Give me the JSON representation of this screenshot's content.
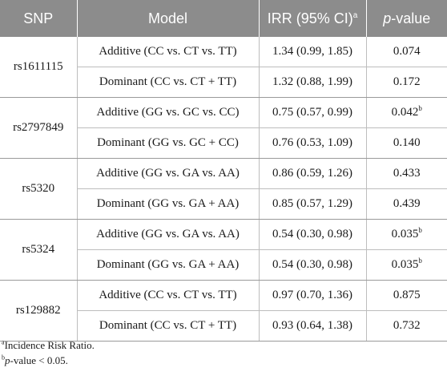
{
  "header": {
    "snp": "SNP",
    "model": "Model",
    "irr": "IRR (95% CI)",
    "irr_sup": "a",
    "pvalue_italic": "p",
    "pvalue_rest": "-value"
  },
  "rows": [
    {
      "snp": "rs1611115",
      "additive_model": "Additive (CC vs. CT vs. TT)",
      "additive_irr": "1.34 (0.99, 1.85)",
      "additive_p": "0.074",
      "additive_sup": "",
      "dominant_model": "Dominant (CC vs. CT + TT)",
      "dominant_irr": "1.32 (0.88, 1.99)",
      "dominant_p": "0.172",
      "dominant_sup": ""
    },
    {
      "snp": "rs2797849",
      "additive_model": "Additive (GG vs. GC vs. CC)",
      "additive_irr": "0.75 (0.57, 0.99)",
      "additive_p": "0.042",
      "additive_sup": "b",
      "dominant_model": "Dominant (GG vs. GC + CC)",
      "dominant_irr": "0.76 (0.53, 1.09)",
      "dominant_p": "0.140",
      "dominant_sup": ""
    },
    {
      "snp": "rs5320",
      "additive_model": "Additive (GG vs. GA vs. AA)",
      "additive_irr": "0.86 (0.59, 1.26)",
      "additive_p": "0.433",
      "additive_sup": "",
      "dominant_model": "Dominant (GG vs. GA + AA)",
      "dominant_irr": "0.85 (0.57, 1.29)",
      "dominant_p": "0.439",
      "dominant_sup": ""
    },
    {
      "snp": "rs5324",
      "additive_model": "Additive (GG vs. GA vs. AA)",
      "additive_irr": "0.54 (0.30, 0.98)",
      "additive_p": "0.035",
      "additive_sup": "b",
      "dominant_model": "Dominant (GG vs. GA + AA)",
      "dominant_irr": "0.54 (0.30, 0.98)",
      "dominant_p": "0.035",
      "dominant_sup": "b"
    },
    {
      "snp": "rs129882",
      "additive_model": "Additive (CC vs. CT vs. TT)",
      "additive_irr": "0.97 (0.70, 1.36)",
      "additive_p": "0.875",
      "additive_sup": "",
      "dominant_model": "Dominant (CC vs. CT + TT)",
      "dominant_irr": "0.93 (0.64, 1.38)",
      "dominant_p": "0.732",
      "dominant_sup": ""
    }
  ],
  "footnotes": {
    "a_mark": "a",
    "a_text": "Incidence Risk Ratio.",
    "b_mark": "b",
    "b_italic": "p",
    "b_text": "-value < 0.05."
  },
  "colors": {
    "header_bg": "#8c8c8c",
    "header_text": "#ffffff",
    "grid": "#bdbdbd"
  }
}
